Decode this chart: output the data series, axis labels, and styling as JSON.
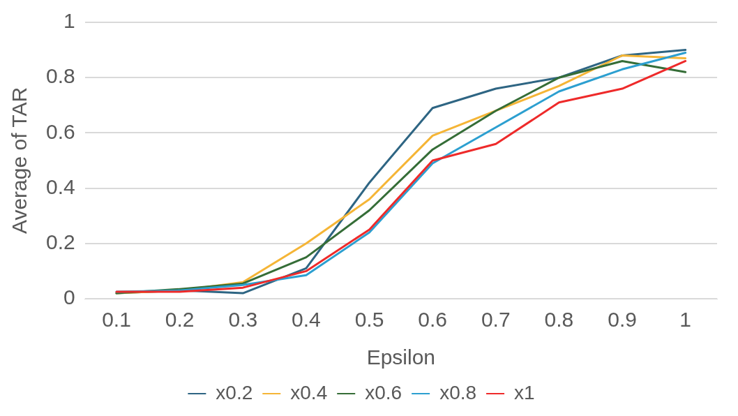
{
  "chart_data": {
    "type": "line",
    "xlabel": "Epsilon",
    "ylabel": "Average of TAR",
    "categories": [
      "0.1",
      "0.2",
      "0.3",
      "0.4",
      "0.5",
      "0.6",
      "0.7",
      "0.8",
      "0.9",
      "1"
    ],
    "series": [
      {
        "name": "x0.2",
        "color": "#2e6583",
        "values": [
          0.02,
          0.03,
          0.02,
          0.11,
          0.42,
          0.69,
          0.76,
          0.8,
          0.88,
          0.9
        ]
      },
      {
        "name": "x0.4",
        "color": "#f5b536",
        "values": [
          0.02,
          0.03,
          0.06,
          0.2,
          0.36,
          0.59,
          0.68,
          0.77,
          0.88,
          0.87
        ]
      },
      {
        "name": "x0.6",
        "color": "#356d37",
        "values": [
          0.02,
          0.035,
          0.055,
          0.15,
          0.32,
          0.54,
          0.68,
          0.8,
          0.86,
          0.82
        ]
      },
      {
        "name": "x0.8",
        "color": "#2c9fd0",
        "values": [
          0.025,
          0.03,
          0.05,
          0.085,
          0.24,
          0.49,
          0.62,
          0.75,
          0.83,
          0.89
        ]
      },
      {
        "name": "x1",
        "color": "#ee2a2a",
        "values": [
          0.025,
          0.025,
          0.04,
          0.1,
          0.25,
          0.5,
          0.56,
          0.71,
          0.76,
          0.86
        ]
      }
    ],
    "ylim": [
      0,
      1
    ],
    "yticks": [
      0,
      0.2,
      0.4,
      0.6,
      0.8,
      1
    ],
    "grid": "y",
    "legend": "bottom",
    "marker": "none",
    "line_style": "solid"
  }
}
